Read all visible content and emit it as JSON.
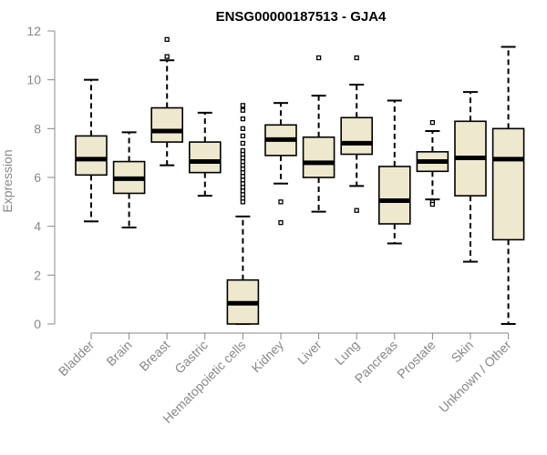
{
  "chart_data": {
    "type": "boxplot",
    "title": "ENSG00000187513 - GJA4",
    "xlabel": "",
    "ylabel": "Expression",
    "ylim": [
      0,
      12
    ],
    "yticks": [
      0,
      2,
      4,
      6,
      8,
      10,
      12
    ],
    "grid": false,
    "colors": {
      "box_fill": "#EEE8CF",
      "stroke": "#000000",
      "axis": "#888888"
    },
    "categories": [
      "Bladder",
      "Brain",
      "Breast",
      "Gastric",
      "Hematopoietic cells",
      "Kidney",
      "Liver",
      "Lung",
      "Pancreas",
      "Prostate",
      "Skin",
      "Unknown / Other"
    ],
    "boxes": [
      {
        "name": "Bladder",
        "whisker_low": 4.2,
        "q1": 6.1,
        "median": 6.75,
        "q3": 7.7,
        "whisker_high": 10.0,
        "outliers": []
      },
      {
        "name": "Brain",
        "whisker_low": 3.95,
        "q1": 5.35,
        "median": 5.95,
        "q3": 6.65,
        "whisker_high": 7.85,
        "outliers": []
      },
      {
        "name": "Breast",
        "whisker_low": 6.5,
        "q1": 7.45,
        "median": 7.9,
        "q3": 8.85,
        "whisker_high": 10.8,
        "outliers": [
          10.95,
          11.65
        ]
      },
      {
        "name": "Gastric",
        "whisker_low": 5.25,
        "q1": 6.2,
        "median": 6.65,
        "q3": 7.45,
        "whisker_high": 8.65,
        "outliers": []
      },
      {
        "name": "Hematopoietic cells",
        "whisker_low": 0.0,
        "q1": 0.0,
        "median": 0.85,
        "q3": 1.8,
        "whisker_high": 4.4,
        "outliers": [
          5.0,
          5.15,
          5.3,
          5.45,
          5.6,
          5.75,
          5.9,
          6.05,
          6.2,
          6.35,
          6.5,
          6.65,
          6.8,
          6.95,
          7.1,
          7.4,
          7.7,
          8.0,
          8.4,
          8.75,
          8.95
        ]
      },
      {
        "name": "Kidney",
        "whisker_low": 5.75,
        "q1": 6.9,
        "median": 7.55,
        "q3": 8.15,
        "whisker_high": 9.05,
        "outliers": [
          5.0,
          4.15
        ]
      },
      {
        "name": "Liver",
        "whisker_low": 4.6,
        "q1": 6.0,
        "median": 6.6,
        "q3": 7.65,
        "whisker_high": 9.35,
        "outliers": [
          10.9
        ]
      },
      {
        "name": "Lung",
        "whisker_low": 5.65,
        "q1": 6.95,
        "median": 7.4,
        "q3": 8.45,
        "whisker_high": 9.8,
        "outliers": [
          10.9,
          4.65
        ]
      },
      {
        "name": "Pancreas",
        "whisker_low": 3.3,
        "q1": 4.1,
        "median": 5.05,
        "q3": 6.45,
        "whisker_high": 9.15,
        "outliers": []
      },
      {
        "name": "Prostate",
        "whisker_low": 5.1,
        "q1": 6.25,
        "median": 6.65,
        "q3": 7.05,
        "whisker_high": 7.9,
        "outliers": [
          8.25,
          5.0,
          4.9
        ]
      },
      {
        "name": "Skin",
        "whisker_low": 2.55,
        "q1": 5.25,
        "median": 6.8,
        "q3": 8.3,
        "whisker_high": 9.5,
        "outliers": []
      },
      {
        "name": "Unknown / Other",
        "whisker_low": 0.0,
        "q1": 3.45,
        "median": 6.75,
        "q3": 8.0,
        "whisker_high": 11.35,
        "outliers": []
      }
    ]
  }
}
